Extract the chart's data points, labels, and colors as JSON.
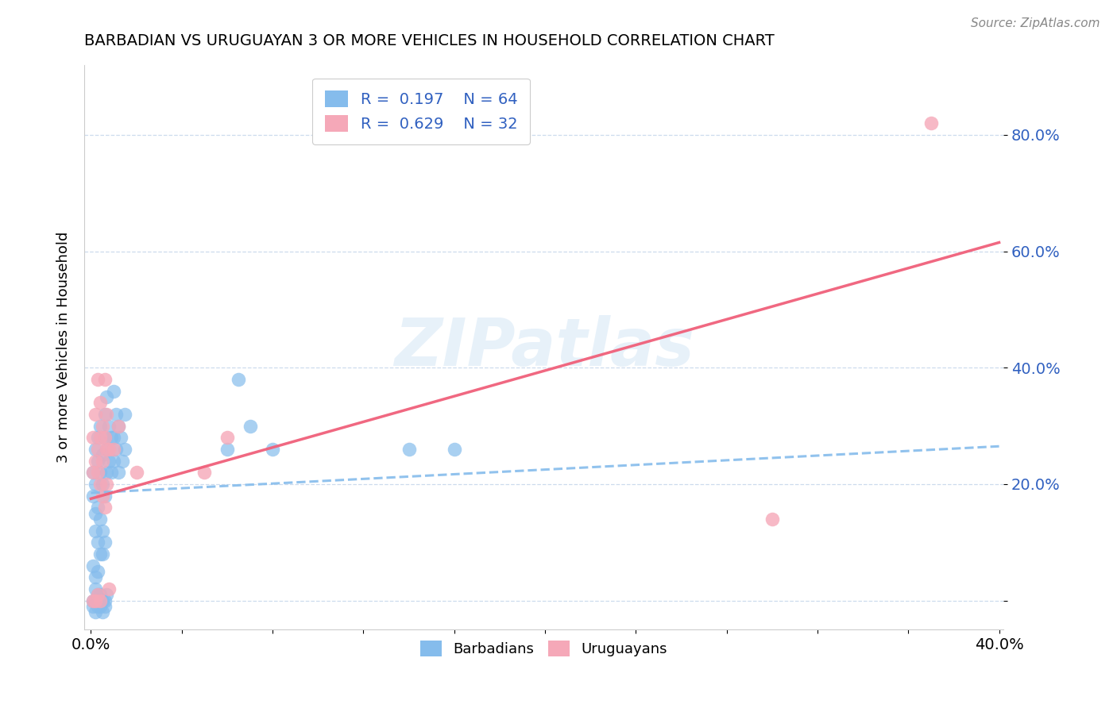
{
  "title": "BARBADIAN VS URUGUAYAN 3 OR MORE VEHICLES IN HOUSEHOLD CORRELATION CHART",
  "source": "Source: ZipAtlas.com",
  "ylabel": "3 or more Vehicles in Household",
  "xlim": [
    -0.003,
    0.402
  ],
  "ylim": [
    -0.05,
    0.92
  ],
  "yticks": [
    0.0,
    0.2,
    0.4,
    0.6,
    0.8
  ],
  "ytick_labels": [
    "",
    "20.0%",
    "40.0%",
    "60.0%",
    "80.0%"
  ],
  "xticks": [
    0.0,
    0.04,
    0.08,
    0.12,
    0.16,
    0.2,
    0.24,
    0.28,
    0.32,
    0.36,
    0.4
  ],
  "xtick_labels": [
    "0.0%",
    "",
    "",
    "",
    "",
    "",
    "",
    "",
    "",
    "",
    "40.0%"
  ],
  "barbadian_color": "#85bcec",
  "uruguayan_color": "#f5a8b8",
  "barbadian_line_color": "#85bcec",
  "uruguayan_line_color": "#f0607a",
  "tick_color": "#3060c0",
  "watermark": "ZIPatlas",
  "barbadian_R": 0.197,
  "barbadian_N": 64,
  "uruguayan_R": 0.629,
  "uruguayan_N": 32,
  "barbadian_scatter": [
    [
      0.001,
      0.22
    ],
    [
      0.002,
      0.26
    ],
    [
      0.002,
      0.2
    ],
    [
      0.003,
      0.28
    ],
    [
      0.003,
      0.24
    ],
    [
      0.004,
      0.3
    ],
    [
      0.004,
      0.22
    ],
    [
      0.005,
      0.25
    ],
    [
      0.005,
      0.2
    ],
    [
      0.006,
      0.32
    ],
    [
      0.006,
      0.28
    ],
    [
      0.006,
      0.18
    ],
    [
      0.007,
      0.35
    ],
    [
      0.007,
      0.26
    ],
    [
      0.007,
      0.22
    ],
    [
      0.008,
      0.3
    ],
    [
      0.008,
      0.24
    ],
    [
      0.009,
      0.28
    ],
    [
      0.009,
      0.22
    ],
    [
      0.01,
      0.36
    ],
    [
      0.01,
      0.28
    ],
    [
      0.01,
      0.24
    ],
    [
      0.011,
      0.32
    ],
    [
      0.011,
      0.26
    ],
    [
      0.012,
      0.3
    ],
    [
      0.012,
      0.22
    ],
    [
      0.013,
      0.28
    ],
    [
      0.014,
      0.24
    ],
    [
      0.015,
      0.32
    ],
    [
      0.015,
      0.26
    ],
    [
      0.001,
      0.18
    ],
    [
      0.002,
      0.15
    ],
    [
      0.002,
      0.12
    ],
    [
      0.003,
      0.16
    ],
    [
      0.003,
      0.1
    ],
    [
      0.004,
      0.14
    ],
    [
      0.004,
      0.08
    ],
    [
      0.005,
      0.12
    ],
    [
      0.005,
      0.08
    ],
    [
      0.006,
      0.1
    ],
    [
      0.001,
      0.06
    ],
    [
      0.002,
      0.04
    ],
    [
      0.002,
      0.02
    ],
    [
      0.003,
      0.05
    ],
    [
      0.003,
      0.01
    ],
    [
      0.001,
      0.0
    ],
    [
      0.001,
      -0.01
    ],
    [
      0.002,
      0.0
    ],
    [
      0.002,
      -0.02
    ],
    [
      0.003,
      0.0
    ],
    [
      0.003,
      -0.01
    ],
    [
      0.004,
      0.01
    ],
    [
      0.004,
      -0.01
    ],
    [
      0.005,
      0.0
    ],
    [
      0.005,
      -0.02
    ],
    [
      0.006,
      0.0
    ],
    [
      0.006,
      -0.01
    ],
    [
      0.007,
      0.01
    ],
    [
      0.06,
      0.26
    ],
    [
      0.065,
      0.38
    ],
    [
      0.07,
      0.3
    ],
    [
      0.08,
      0.26
    ],
    [
      0.14,
      0.26
    ],
    [
      0.16,
      0.26
    ]
  ],
  "uruguayan_scatter": [
    [
      0.001,
      0.28
    ],
    [
      0.002,
      0.32
    ],
    [
      0.003,
      0.38
    ],
    [
      0.003,
      0.26
    ],
    [
      0.004,
      0.34
    ],
    [
      0.005,
      0.3
    ],
    [
      0.006,
      0.38
    ],
    [
      0.007,
      0.26
    ],
    [
      0.002,
      0.24
    ],
    [
      0.003,
      0.22
    ],
    [
      0.004,
      0.28
    ],
    [
      0.005,
      0.24
    ],
    [
      0.006,
      0.28
    ],
    [
      0.007,
      0.32
    ],
    [
      0.008,
      0.26
    ],
    [
      0.001,
      0.22
    ],
    [
      0.004,
      0.2
    ],
    [
      0.005,
      0.18
    ],
    [
      0.006,
      0.16
    ],
    [
      0.007,
      0.2
    ],
    [
      0.001,
      0.0
    ],
    [
      0.002,
      0.0
    ],
    [
      0.003,
      0.01
    ],
    [
      0.004,
      0.0
    ],
    [
      0.008,
      0.02
    ],
    [
      0.01,
      0.26
    ],
    [
      0.012,
      0.3
    ],
    [
      0.05,
      0.22
    ],
    [
      0.06,
      0.28
    ],
    [
      0.3,
      0.14
    ],
    [
      0.37,
      0.82
    ],
    [
      0.02,
      0.22
    ]
  ],
  "barbadian_trend_x": [
    0.0,
    0.4
  ],
  "barbadian_trend_y": [
    0.185,
    0.265
  ],
  "uruguayan_trend_x": [
    0.0,
    0.4
  ],
  "uruguayan_trend_y": [
    0.175,
    0.615
  ]
}
